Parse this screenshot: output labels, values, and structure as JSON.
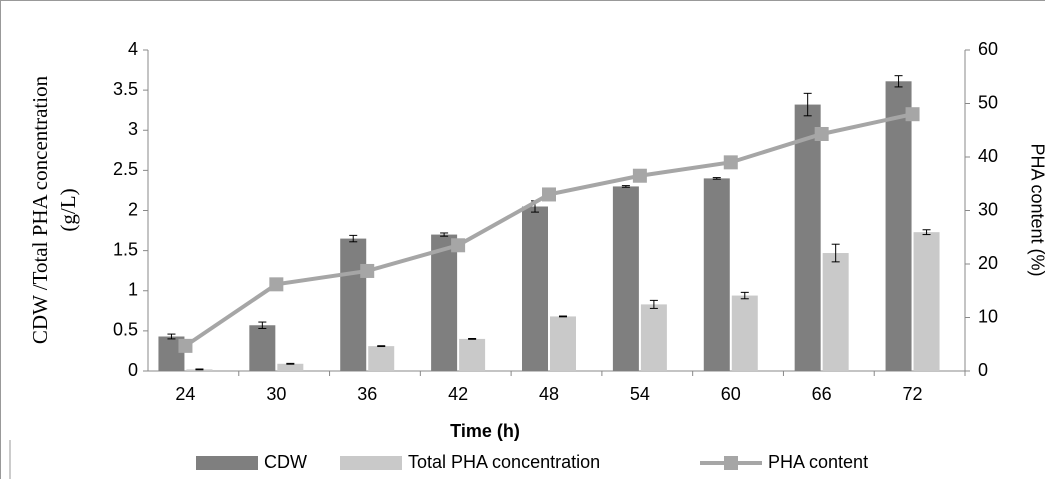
{
  "chart_data": {
    "type": "bar-line",
    "xlabel": "Time (h)",
    "ylabel_lines": [
      "CDW /Total PHA concentration",
      "(g/L)"
    ],
    "y2label": "PHA content (%)",
    "categories": [
      "24",
      "30",
      "36",
      "42",
      "48",
      "54",
      "60",
      "66",
      "72"
    ],
    "ylim": [
      0,
      4
    ],
    "yticks": [
      0,
      0.5,
      1,
      1.5,
      2,
      2.5,
      3,
      3.5,
      4
    ],
    "y2lim": [
      0,
      60
    ],
    "y2ticks": [
      0,
      10,
      20,
      30,
      40,
      50,
      60
    ],
    "series": [
      {
        "name": "CDW",
        "type": "bar",
        "color": "#7f7f7f",
        "values": [
          0.43,
          0.57,
          1.65,
          1.7,
          2.05,
          2.3,
          2.4,
          3.32,
          3.61
        ],
        "errors": [
          0.03,
          0.04,
          0.04,
          0.02,
          0.07,
          0.01,
          0.01,
          0.14,
          0.07
        ]
      },
      {
        "name": "Total PHA concentration",
        "type": "bar",
        "color": "#c9c9c9",
        "values": [
          0.02,
          0.09,
          0.31,
          0.4,
          0.68,
          0.83,
          0.94,
          1.47,
          1.73
        ],
        "errors": [
          0.005,
          0.005,
          0.005,
          0.005,
          0.005,
          0.05,
          0.04,
          0.11,
          0.03
        ]
      },
      {
        "name": "PHA content",
        "type": "line",
        "axis": "y2",
        "color": "#a6a6a6",
        "values": [
          4.7,
          16.2,
          18.7,
          23.5,
          33.0,
          36.5,
          39.0,
          44.3,
          48.0
        ]
      }
    ],
    "legend": "bottom"
  }
}
